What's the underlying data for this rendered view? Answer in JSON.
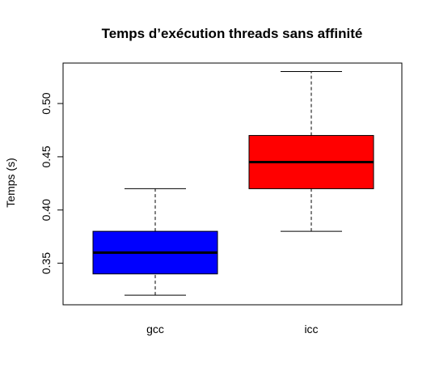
{
  "chart_data": {
    "type": "boxplot",
    "title": "Temps d’exécution threads sans affinité",
    "xlabel": "",
    "ylabel": "Temps (s)",
    "ylim": [
      0.311,
      0.538
    ],
    "y_ticks": [
      0.35,
      0.4,
      0.45,
      0.5
    ],
    "y_tick_labels": [
      "0.35",
      "0.40",
      "0.45",
      "0.50"
    ],
    "categories": [
      "gcc",
      "icc"
    ],
    "series": [
      {
        "name": "gcc",
        "color": "#0000ff",
        "min": 0.32,
        "q1": 0.34,
        "median": 0.36,
        "q3": 0.38,
        "max": 0.42
      },
      {
        "name": "icc",
        "color": "#ff0000",
        "min": 0.38,
        "q1": 0.42,
        "median": 0.445,
        "q3": 0.47,
        "max": 0.53
      }
    ],
    "grid": false,
    "legend": "none"
  }
}
